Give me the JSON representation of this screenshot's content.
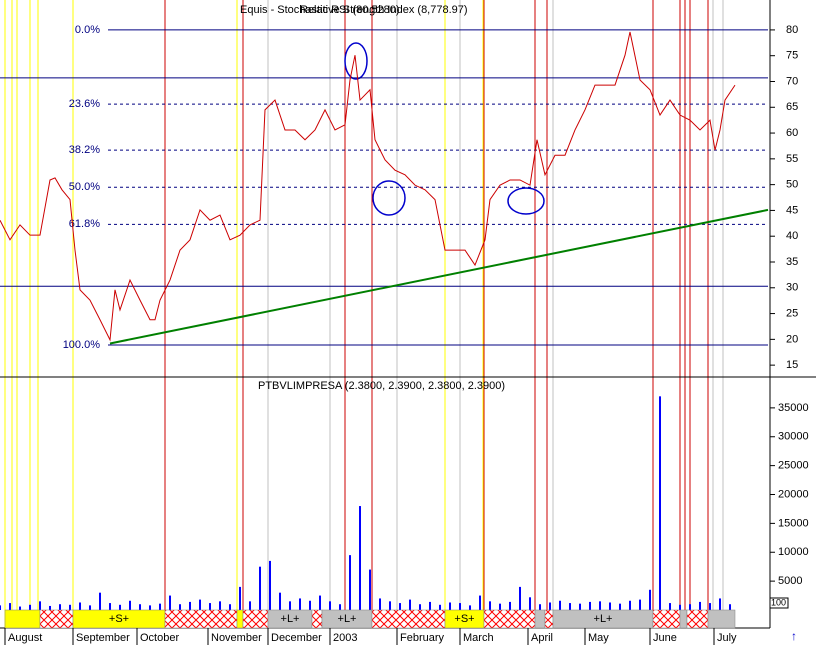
{
  "chart_data": [
    {
      "type": "line",
      "title": "Equis - Stochastic RSI (80.5280)",
      "subtitle": "Relative Strength Index (8,778.97)",
      "color": "#cc0000",
      "x": [
        0,
        2,
        4,
        6,
        8,
        10,
        11,
        12.4,
        14,
        15,
        16,
        18,
        20,
        22,
        23,
        24,
        26,
        28,
        30,
        31,
        32,
        34,
        36,
        38,
        40,
        42,
        44,
        46,
        48,
        50,
        52,
        53,
        55,
        57,
        59,
        61,
        63,
        65,
        67,
        69,
        70,
        71,
        72,
        74,
        75,
        77,
        79,
        81,
        83,
        85,
        87,
        89,
        91,
        93,
        95,
        97,
        98,
        100,
        102,
        104,
        106,
        107.4,
        109,
        111,
        113,
        115,
        117,
        119,
        121,
        123,
        125,
        126,
        128,
        130,
        132,
        134,
        136,
        138,
        140,
        142,
        143,
        144,
        145,
        147
      ],
      "values": [
        43.1,
        39.3,
        42.2,
        40.2,
        40.2,
        50.9,
        51.3,
        49.0,
        47.1,
        37.3,
        29.6,
        27.6,
        23.8,
        19.9,
        29.6,
        25.7,
        31.5,
        27.6,
        23.8,
        23.8,
        27.6,
        31.5,
        37.3,
        39.3,
        45.1,
        43.1,
        44.1,
        39.3,
        40.2,
        42.2,
        43.1,
        64.5,
        66.4,
        60.6,
        60.6,
        58.7,
        60.6,
        64.5,
        60.6,
        61.6,
        70.3,
        75.1,
        66.4,
        68.4,
        58.7,
        54.8,
        52.8,
        51.9,
        49.9,
        49.0,
        47.1,
        37.3,
        37.3,
        37.3,
        34.4,
        39.3,
        47.1,
        49.9,
        50.9,
        50.9,
        49.9,
        58.7,
        51.9,
        55.7,
        55.7,
        60.6,
        64.5,
        69.3,
        69.3,
        69.3,
        75.1,
        79.6,
        70.3,
        68.4,
        63.5,
        66.4,
        63.5,
        62.5,
        60.6,
        62.5,
        56.7,
        60.6,
        66.4,
        69.3
      ],
      "xlim": [
        0,
        153.6
      ],
      "ylim": [
        12.7,
        85.8
      ],
      "yticks": [
        15,
        20,
        25,
        30,
        35,
        40,
        45,
        50,
        55,
        60,
        65,
        70,
        75,
        80
      ],
      "fib_levels": [
        {
          "value": 80,
          "label": "0.0%"
        },
        {
          "value": 65.6,
          "label": "23.6%"
        },
        {
          "value": 56.7,
          "label": "38.2%"
        },
        {
          "value": 49.5,
          "label": "50.0%"
        },
        {
          "value": 42.3,
          "label": "61.8%"
        },
        {
          "value": 18.9,
          "label": "100.0%"
        }
      ],
      "hlines": [
        70.7,
        30.3
      ],
      "fib_color": "#000080",
      "trendline": {
        "x": [
          22,
          153.6
        ],
        "values": [
          19.2,
          45.1
        ],
        "color": "#008000"
      },
      "signal_lines": [
        {
          "color": "#ffff00",
          "x": [
            1,
            2.4,
            3.4,
            6,
            7.6,
            14.6,
            47.4,
            89,
            96.6
          ]
        },
        {
          "color": "#c0c0c0",
          "x": [
            53.6,
            66,
            79.4,
            92,
            110.6,
            142.6,
            144.6
          ]
        },
        {
          "color": "#cc0000",
          "x": [
            33,
            48.6,
            69,
            74.4,
            96.8,
            107,
            109.4,
            130.6,
            136,
            137,
            138,
            141.6
          ]
        }
      ]
    },
    {
      "type": "bar",
      "title": "PTBVLIMPRESA (2.3800, 2.3900, 2.3800, 2.3900)",
      "color": "#0000ff",
      "x": [
        0,
        2,
        4,
        6,
        8,
        10,
        12,
        14,
        16,
        18,
        20,
        22,
        24,
        26,
        28,
        30,
        32,
        34,
        36,
        38,
        40,
        42,
        44,
        46,
        48,
        50,
        52,
        54,
        56,
        58,
        60,
        62,
        64,
        66,
        68,
        70,
        72,
        74,
        76,
        78,
        80,
        82,
        84,
        86,
        88,
        90,
        92,
        94,
        96,
        98,
        100,
        102,
        104,
        106,
        108,
        110,
        112,
        114,
        116,
        118,
        120,
        122,
        124,
        126,
        128,
        130,
        132,
        134,
        136,
        138,
        140,
        142,
        144,
        146
      ],
      "values": [
        800,
        1200,
        600,
        900,
        1500,
        700,
        1000,
        900,
        1300,
        800,
        3000,
        1200,
        900,
        1600,
        1000,
        800,
        1100,
        2500,
        1000,
        1400,
        1800,
        1200,
        1500,
        1000,
        4000,
        1500,
        7500,
        8500,
        3000,
        1500,
        2000,
        1600,
        2500,
        1500,
        1000,
        9500,
        18000,
        7000,
        2000,
        1500,
        1200,
        1800,
        1000,
        1400,
        900,
        1300,
        1200,
        800,
        2500,
        1500,
        1100,
        1400,
        4000,
        2200,
        1000,
        1300,
        1600,
        1200,
        1100,
        1400,
        1500,
        1300,
        1100,
        1600,
        1800,
        3500,
        37000,
        1200,
        900,
        1000,
        1400,
        1200,
        2000,
        1000
      ],
      "xlim": [
        0,
        153.6
      ],
      "ylim": [
        0,
        40000
      ],
      "yticks": [
        5000,
        10000,
        15000,
        20000,
        25000,
        30000,
        35000
      ],
      "scale_label": "100",
      "xticks": [
        {
          "value": 1,
          "label": "August"
        },
        {
          "value": 14.6,
          "label": "September"
        },
        {
          "value": 27.4,
          "label": "October"
        },
        {
          "value": 41.6,
          "label": "November"
        },
        {
          "value": 53.6,
          "label": "December"
        },
        {
          "value": 66,
          "label": "2003"
        },
        {
          "value": 79.4,
          "label": "February"
        },
        {
          "value": 92,
          "label": "March"
        },
        {
          "value": 105.6,
          "label": "April"
        },
        {
          "value": 117,
          "label": "May"
        },
        {
          "value": 130,
          "label": "June"
        },
        {
          "value": 142.8,
          "label": "July"
        }
      ],
      "signal_bands": [
        {
          "x": [
            1,
            8
          ],
          "color": "#ffff00"
        },
        {
          "x": [
            8,
            14.6
          ],
          "color": "#ff0000",
          "hatched": true
        },
        {
          "x": [
            14.6,
            33
          ],
          "color": "#ffff00",
          "label": "+S+"
        },
        {
          "x": [
            33,
            47.4
          ],
          "color": "#ff0000",
          "hatched": true
        },
        {
          "x": [
            47.4,
            48.6
          ],
          "color": "#ffff00"
        },
        {
          "x": [
            48.6,
            53.6
          ],
          "color": "#ff0000",
          "hatched": true
        },
        {
          "x": [
            53.6,
            62.4
          ],
          "color": "#c0c0c0",
          "label": "+L+"
        },
        {
          "x": [
            62.4,
            64.4
          ],
          "color": "#ff0000",
          "hatched": true
        },
        {
          "x": [
            64.4,
            74.4
          ],
          "color": "#c0c0c0",
          "label": "+L+"
        },
        {
          "x": [
            74.4,
            89
          ],
          "color": "#ff0000",
          "hatched": true
        },
        {
          "x": [
            89,
            96.8
          ],
          "color": "#ffff00",
          "label": "+S+"
        },
        {
          "x": [
            96.8,
            107
          ],
          "color": "#ff0000",
          "hatched": true
        },
        {
          "x": [
            107,
            109
          ],
          "color": "#c0c0c0"
        },
        {
          "x": [
            109,
            110.6
          ],
          "color": "#ff0000",
          "hatched": true
        },
        {
          "x": [
            110.6,
            130.6
          ],
          "color": "#c0c0c0",
          "label": "+L+"
        },
        {
          "x": [
            130.6,
            136
          ],
          "color": "#ff0000",
          "hatched": true
        },
        {
          "x": [
            136,
            137.4
          ],
          "color": "#c0c0c0"
        },
        {
          "x": [
            137.4,
            141.6
          ],
          "color": "#ff0000",
          "hatched": true
        },
        {
          "x": [
            141.6,
            147
          ],
          "color": "#c0c0c0"
        }
      ]
    }
  ]
}
